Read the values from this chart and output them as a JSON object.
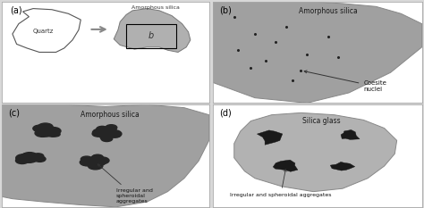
{
  "bg_color": "#d8d8d8",
  "panel_bg": "#ffffff",
  "gray_silica": "#999999",
  "dark_agg": "#2a2a2a",
  "label_a_quartz": "Quartz",
  "label_a_amorph": "Amorphous silica",
  "label_b_text": "Amorphous silica",
  "label_b_annot": "Coesite\nnuclei",
  "label_c_text": "Amorphous silica",
  "label_c_annot": "Irregular and\nspheroidal\naggregates",
  "label_d_text": "Silica glass",
  "label_d_annot": "Irregular and spheroidal aggregates",
  "panel_label_a": "(a)",
  "panel_label_b": "(b)",
  "panel_label_c": "(c)",
  "panel_label_d": "(d)"
}
